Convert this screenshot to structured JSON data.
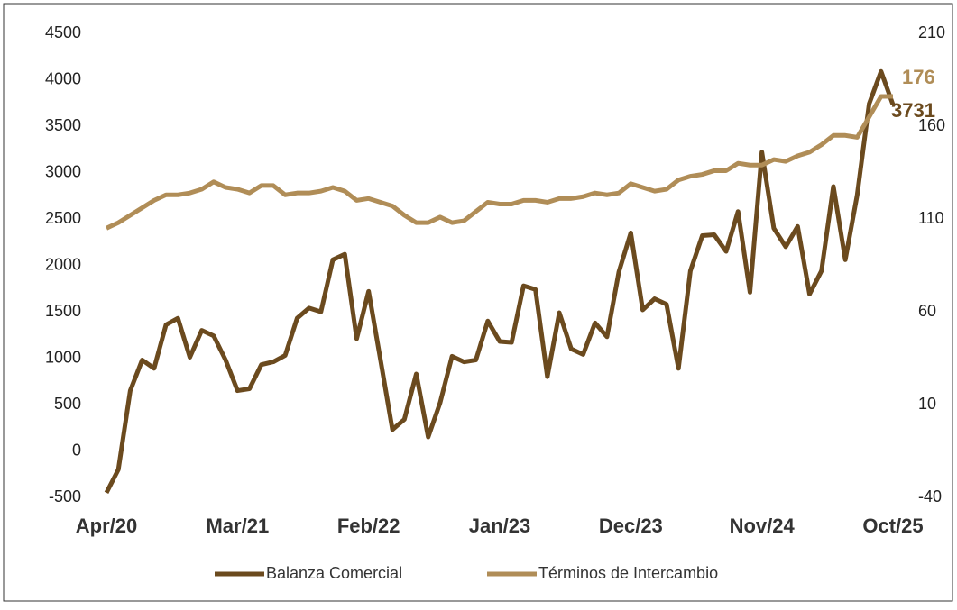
{
  "chart_data": {
    "type": "line",
    "categories": [
      "Apr/20",
      null,
      null,
      null,
      null,
      null,
      null,
      null,
      null,
      null,
      null,
      "Mar/21",
      null,
      null,
      null,
      null,
      null,
      null,
      null,
      null,
      null,
      null,
      "Feb/22",
      null,
      null,
      null,
      null,
      null,
      null,
      null,
      null,
      null,
      null,
      "Jan/23",
      null,
      null,
      null,
      null,
      null,
      null,
      null,
      null,
      null,
      null,
      "Dec/23",
      null,
      null,
      null,
      null,
      null,
      null,
      null,
      null,
      null,
      null,
      "Nov/24",
      null,
      null,
      null,
      null,
      null,
      null,
      null,
      null,
      null,
      null,
      "Oct/25"
    ],
    "series": [
      {
        "name": "Balanza Comercial",
        "color": "#6b4a1e",
        "axis": "y",
        "values": [
          -450,
          -200,
          650,
          980,
          890,
          1360,
          1430,
          1010,
          1300,
          1240,
          980,
          650,
          670,
          930,
          960,
          1030,
          1430,
          1540,
          1500,
          2060,
          2120,
          1210,
          1720,
          980,
          230,
          340,
          830,
          150,
          520,
          1020,
          960,
          980,
          1400,
          1180,
          1170,
          1780,
          1740,
          800,
          1490,
          1100,
          1040,
          1380,
          1230,
          1930,
          2350,
          1520,
          1640,
          1580,
          890,
          1940,
          2320,
          2330,
          2150,
          2580,
          1710,
          3220,
          2400,
          2200,
          2420,
          1690,
          1940,
          2850,
          2060,
          2760,
          3740,
          4090,
          3731
        ]
      },
      {
        "name": "Términos de Intercambio",
        "color": "#b08d57",
        "axis": "y2",
        "values": [
          105,
          108,
          112,
          116,
          120,
          123,
          123,
          124,
          126,
          130,
          127,
          126,
          124,
          128,
          128,
          123,
          124,
          124,
          125,
          127,
          125,
          120,
          121,
          119,
          117,
          112,
          108,
          108,
          111,
          108,
          109,
          114,
          119,
          118,
          118,
          120,
          120,
          119,
          121,
          121,
          122,
          124,
          123,
          124,
          129,
          127,
          125,
          126,
          131,
          133,
          134,
          136,
          136,
          140,
          139,
          139,
          142,
          141,
          144,
          146,
          150,
          155,
          155,
          154,
          165,
          176,
          176
        ]
      }
    ],
    "ylim": [
      -500,
      4500
    ],
    "yticks": [
      -500,
      0,
      500,
      1000,
      1500,
      2000,
      2500,
      3000,
      3500,
      4000,
      4500
    ],
    "y2lim": [
      -40,
      210
    ],
    "y2ticks": [
      -40,
      10,
      60,
      110,
      160,
      210
    ],
    "legend": "bottom"
  }
}
